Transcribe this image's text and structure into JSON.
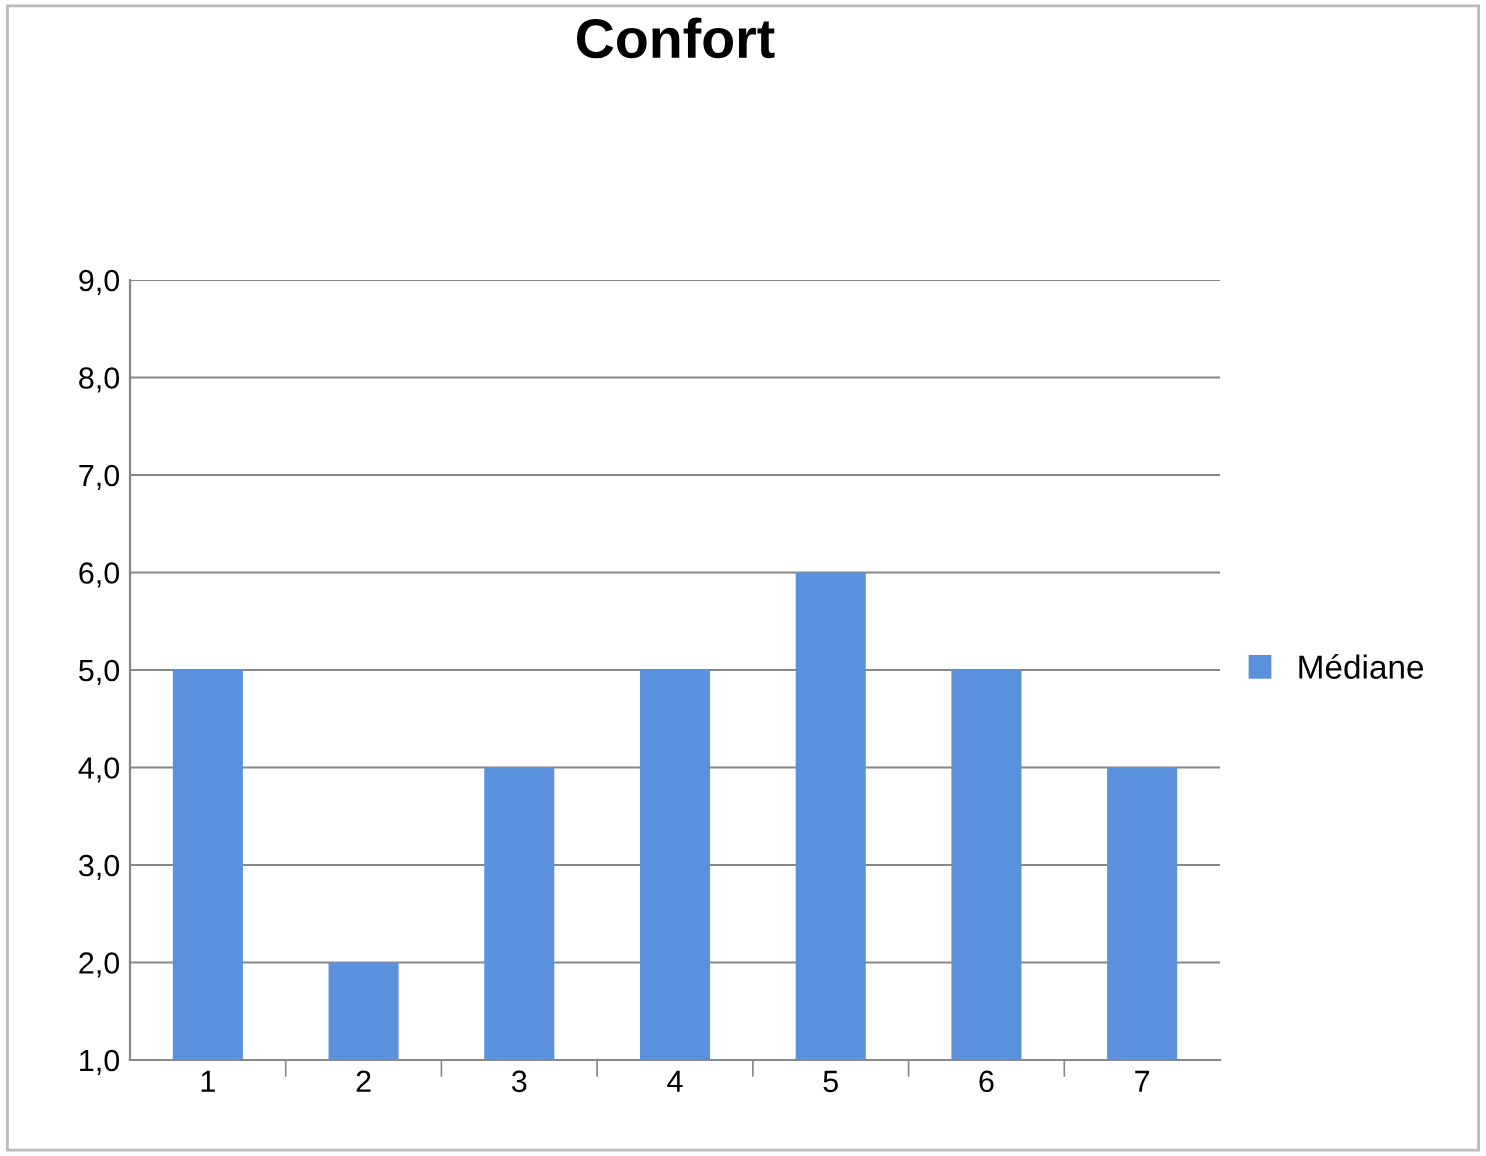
{
  "chart_data": {
    "type": "bar",
    "title": "Confort",
    "categories": [
      "1",
      "2",
      "3",
      "4",
      "5",
      "6",
      "7"
    ],
    "series": [
      {
        "name": "Médiane",
        "color": "#5b91dc",
        "values": [
          5,
          2,
          4,
          5,
          6,
          5,
          4
        ]
      }
    ],
    "ylim": [
      1,
      9
    ],
    "yticks": [
      {
        "value": 1,
        "label": "1,0"
      },
      {
        "value": 2,
        "label": "2,0"
      },
      {
        "value": 3,
        "label": "3,0"
      },
      {
        "value": 4,
        "label": "4,0"
      },
      {
        "value": 5,
        "label": "5,0"
      },
      {
        "value": 6,
        "label": "6,0"
      },
      {
        "value": 7,
        "label": "7,0"
      },
      {
        "value": 8,
        "label": "8,0"
      },
      {
        "value": 9,
        "label": "9,0"
      }
    ],
    "grid": "y",
    "legend": "right"
  }
}
